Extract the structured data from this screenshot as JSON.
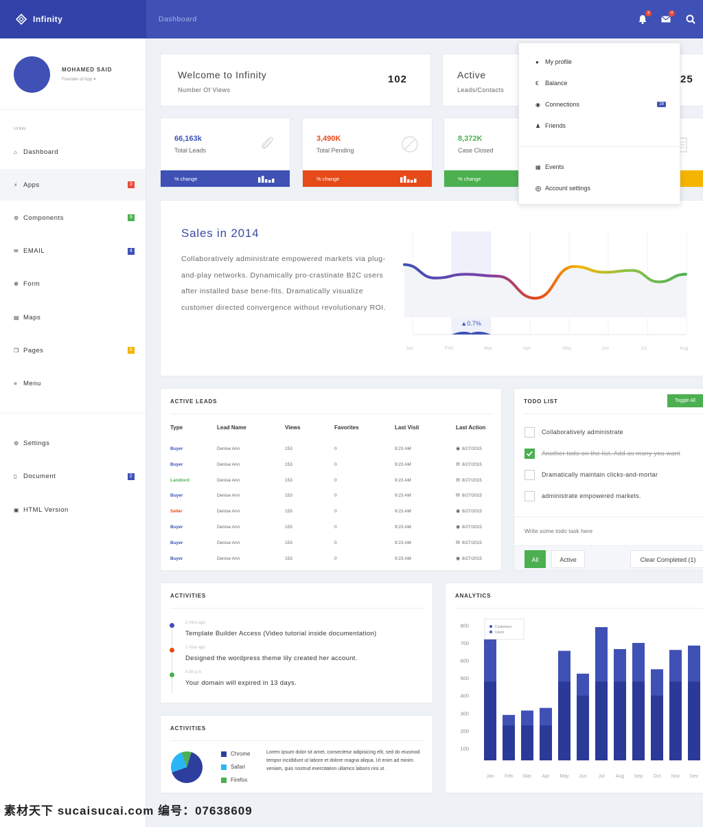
{
  "brand": {
    "name": "Infinity"
  },
  "topbar": {
    "breadcrumb": "Dashboard",
    "notif_count": "3",
    "mail_count": "4"
  },
  "profile": {
    "name": "MOHAMED SAID",
    "role": "Founder of App ▾"
  },
  "sidebar": {
    "section_label": "UI Kits",
    "items": [
      {
        "label": "Dashboard",
        "icon": "home-icon",
        "badge": "",
        "badge_color": ""
      },
      {
        "label": "Apps",
        "icon": "bolt-icon",
        "badge": "3",
        "badge_color": "#e94b3c"
      },
      {
        "label": "Components",
        "icon": "cog-icon",
        "badge": "9",
        "badge_color": "#4caf50"
      },
      {
        "label": "EMAIL",
        "icon": "envelope-icon",
        "badge": "4",
        "badge_color": "#3f51b5"
      },
      {
        "label": "Form",
        "icon": "rebel-icon",
        "badge": "",
        "badge_color": ""
      },
      {
        "label": "Maps",
        "icon": "map-icon",
        "badge": "",
        "badge_color": ""
      },
      {
        "label": "Pages",
        "icon": "copy-icon",
        "badge": "8",
        "badge_color": "#f4b400"
      },
      {
        "label": "Menu",
        "icon": "menu-icon",
        "badge": "",
        "badge_color": ""
      }
    ],
    "bottom_items": [
      {
        "label": "Settings",
        "icon": "gear-icon",
        "badge": "",
        "badge_color": ""
      },
      {
        "label": "Document",
        "icon": "document-icon",
        "badge": "2",
        "badge_color": "#3f51b5"
      },
      {
        "label": "HTML Version",
        "icon": "html5-icon",
        "badge": "",
        "badge_color": ""
      }
    ]
  },
  "welcome": {
    "title": "Welcome to Infinity",
    "subtitle": "Number Of Views",
    "value": "102"
  },
  "active": {
    "title": "Active",
    "subtitle": "Leads/Contacts",
    "value": "25"
  },
  "stats": [
    {
      "value": "66,163k",
      "label": "Total Leads",
      "change": "% change",
      "color": "#3f51b5",
      "value_color": "#3f51b5"
    },
    {
      "value": "3,490K",
      "label": "Total Pending",
      "change": "% change",
      "color": "#e64a19",
      "value_color": "#e64a19"
    },
    {
      "value": "8,372K",
      "label": "Case Closed",
      "change": "% change",
      "color": "#4caf50",
      "value_color": "#4caf50"
    },
    {
      "color": "#f4b400"
    }
  ],
  "dropdown": {
    "items": [
      "My profile",
      "Balance",
      "Connections",
      "Friends"
    ],
    "connections_badge": "29",
    "items2": [
      "Events",
      "Account settings"
    ]
  },
  "sales": {
    "title": "Sales in 2014",
    "text": "Collaboratively administrate empowered markets via plug-and-play networks. Dynamically pro-crastinate B2C users after installed base bene-fits. Dramatically visualize customer directed convergence without revolutionary ROI.",
    "highlight": "0.7%",
    "months": [
      "Jan",
      "Feb",
      "Mar",
      "Apr",
      "May",
      "Jun",
      "Jul",
      "Aug"
    ]
  },
  "leads": {
    "title": "ACTIVE LEADS",
    "headers": [
      "Type",
      "Lead Name",
      "Views",
      "Favorites",
      "Last Visit",
      "Last Action"
    ],
    "rows": [
      {
        "type": "Buyer",
        "color": "#3f51b5",
        "name": "Denise Ann",
        "views": "153",
        "fav": "0",
        "visit": "9:23 AM",
        "action": "8/27/2015",
        "icon": "globe"
      },
      {
        "type": "Buyer",
        "color": "#3f51b5",
        "name": "Denise Ann",
        "views": "153",
        "fav": "0",
        "visit": "9:23 AM",
        "action": "8/27/2015",
        "icon": "mail"
      },
      {
        "type": "Landlord",
        "color": "#4caf50",
        "name": "Denise Ann",
        "views": "153",
        "fav": "0",
        "visit": "9:23 AM",
        "action": "8/27/2015",
        "icon": "mail"
      },
      {
        "type": "Buyer",
        "color": "#3f51b5",
        "name": "Denise Ann",
        "views": "153",
        "fav": "0",
        "visit": "9:23 AM",
        "action": "8/27/2015",
        "icon": "mail"
      },
      {
        "type": "Seller",
        "color": "#e64a19",
        "name": "Denise Ann",
        "views": "153",
        "fav": "0",
        "visit": "9:23 AM",
        "action": "8/27/2015",
        "icon": "globe"
      },
      {
        "type": "Buyer",
        "color": "#3f51b5",
        "name": "Denise Ann",
        "views": "153",
        "fav": "0",
        "visit": "9:23 AM",
        "action": "8/27/2015",
        "icon": "globe"
      },
      {
        "type": "Buyer",
        "color": "#3f51b5",
        "name": "Denise Ann",
        "views": "153",
        "fav": "0",
        "visit": "9:23 AM",
        "action": "8/27/2015",
        "icon": "mail"
      },
      {
        "type": "Buyer",
        "color": "#3f51b5",
        "name": "Denise Ann",
        "views": "153",
        "fav": "0",
        "visit": "9:23 AM",
        "action": "8/27/2015",
        "icon": "globe"
      }
    ]
  },
  "todo": {
    "title": "TODO LIST",
    "toggle_label": "Toggle All",
    "items": [
      {
        "text": "Collaboratively administrate",
        "done": false
      },
      {
        "text": "Another todo on the list. Add as many you want",
        "done": true
      },
      {
        "text": "Dramatically maintain clicks-and-mortar",
        "done": false
      },
      {
        "text": "administrate empowered markets.",
        "done": false
      }
    ],
    "placeholder": "Write some todo task here",
    "filter_all": "All",
    "filter_active": "Active",
    "clear_label": "Clear Completed (1)"
  },
  "activities": {
    "title": "ACTIVITIES",
    "items": [
      {
        "time": "2 mins ago",
        "text": "Template Builder Access (Video tutorial inside documentation)",
        "color": "#3f51b5"
      },
      {
        "time": "1 hour ago",
        "text": "Designed the wordpress theme lily created her account.",
        "color": "#e64a19"
      },
      {
        "time": "4:30 p.m",
        "text": "Your domain will expired in 13 days.",
        "color": "#4caf50"
      }
    ]
  },
  "activities2": {
    "title": "ACTIVITIES",
    "legend": [
      {
        "label": "Chrome",
        "color": "#2c3e9e"
      },
      {
        "label": "Safari",
        "color": "#29b6f6"
      },
      {
        "label": "Firefox",
        "color": "#4caf50"
      }
    ],
    "lorem": "Lorem ipsum dolor sit amet, consectetur adipisicing elit, sed do eiusmod tempor incididunt ut labore et dolore magna aliqua. Ut enim ad minim veniam, quis nostrud exercitation ullamco laboris nisi ut ."
  },
  "analytics": {
    "title": "ANALYTICS"
  },
  "watermark": {
    "text": "素材天下 sucaisucai.com  编号：07638609"
  },
  "chart_data": [
    {
      "type": "line",
      "title": "Sales in 2014",
      "categories": [
        "Jan",
        "Feb",
        "Mar",
        "Apr",
        "May",
        "Jun",
        "Jul",
        "Aug"
      ],
      "values": [
        62,
        48,
        52,
        50,
        27,
        60,
        54,
        56,
        44,
        52
      ],
      "x": [
        0,
        0.8,
        1.6,
        2.4,
        3.4,
        4.4,
        5.2,
        5.9,
        6.6,
        7.3
      ],
      "ylim": [
        0,
        100
      ],
      "annotation": "0.7%"
    },
    {
      "type": "bar",
      "title": "ANALYTICS",
      "categories": [
        "Jan",
        "Feb",
        "Mar",
        "Apr",
        "May",
        "Jun",
        "Jul",
        "Aug",
        "Sep",
        "Oct",
        "Nov",
        "Dec"
      ],
      "series": [
        {
          "name": "Customers",
          "values": [
            720,
            290,
            315,
            330,
            655,
            525,
            790,
            665,
            700,
            550,
            660,
            685
          ]
        },
        {
          "name": "Users",
          "values": [
            480,
            230,
            230,
            230,
            480,
            400,
            480,
            480,
            480,
            400,
            480,
            480
          ]
        }
      ],
      "yticks": [
        100,
        200,
        300,
        400,
        500,
        600,
        700,
        800
      ],
      "ylim": [
        0,
        850
      ],
      "legend": [
        "Customers",
        "Users"
      ]
    },
    {
      "type": "pie",
      "categories": [
        "Chrome",
        "Safari",
        "Firefox"
      ],
      "values": [
        65,
        25,
        10
      ]
    }
  ]
}
